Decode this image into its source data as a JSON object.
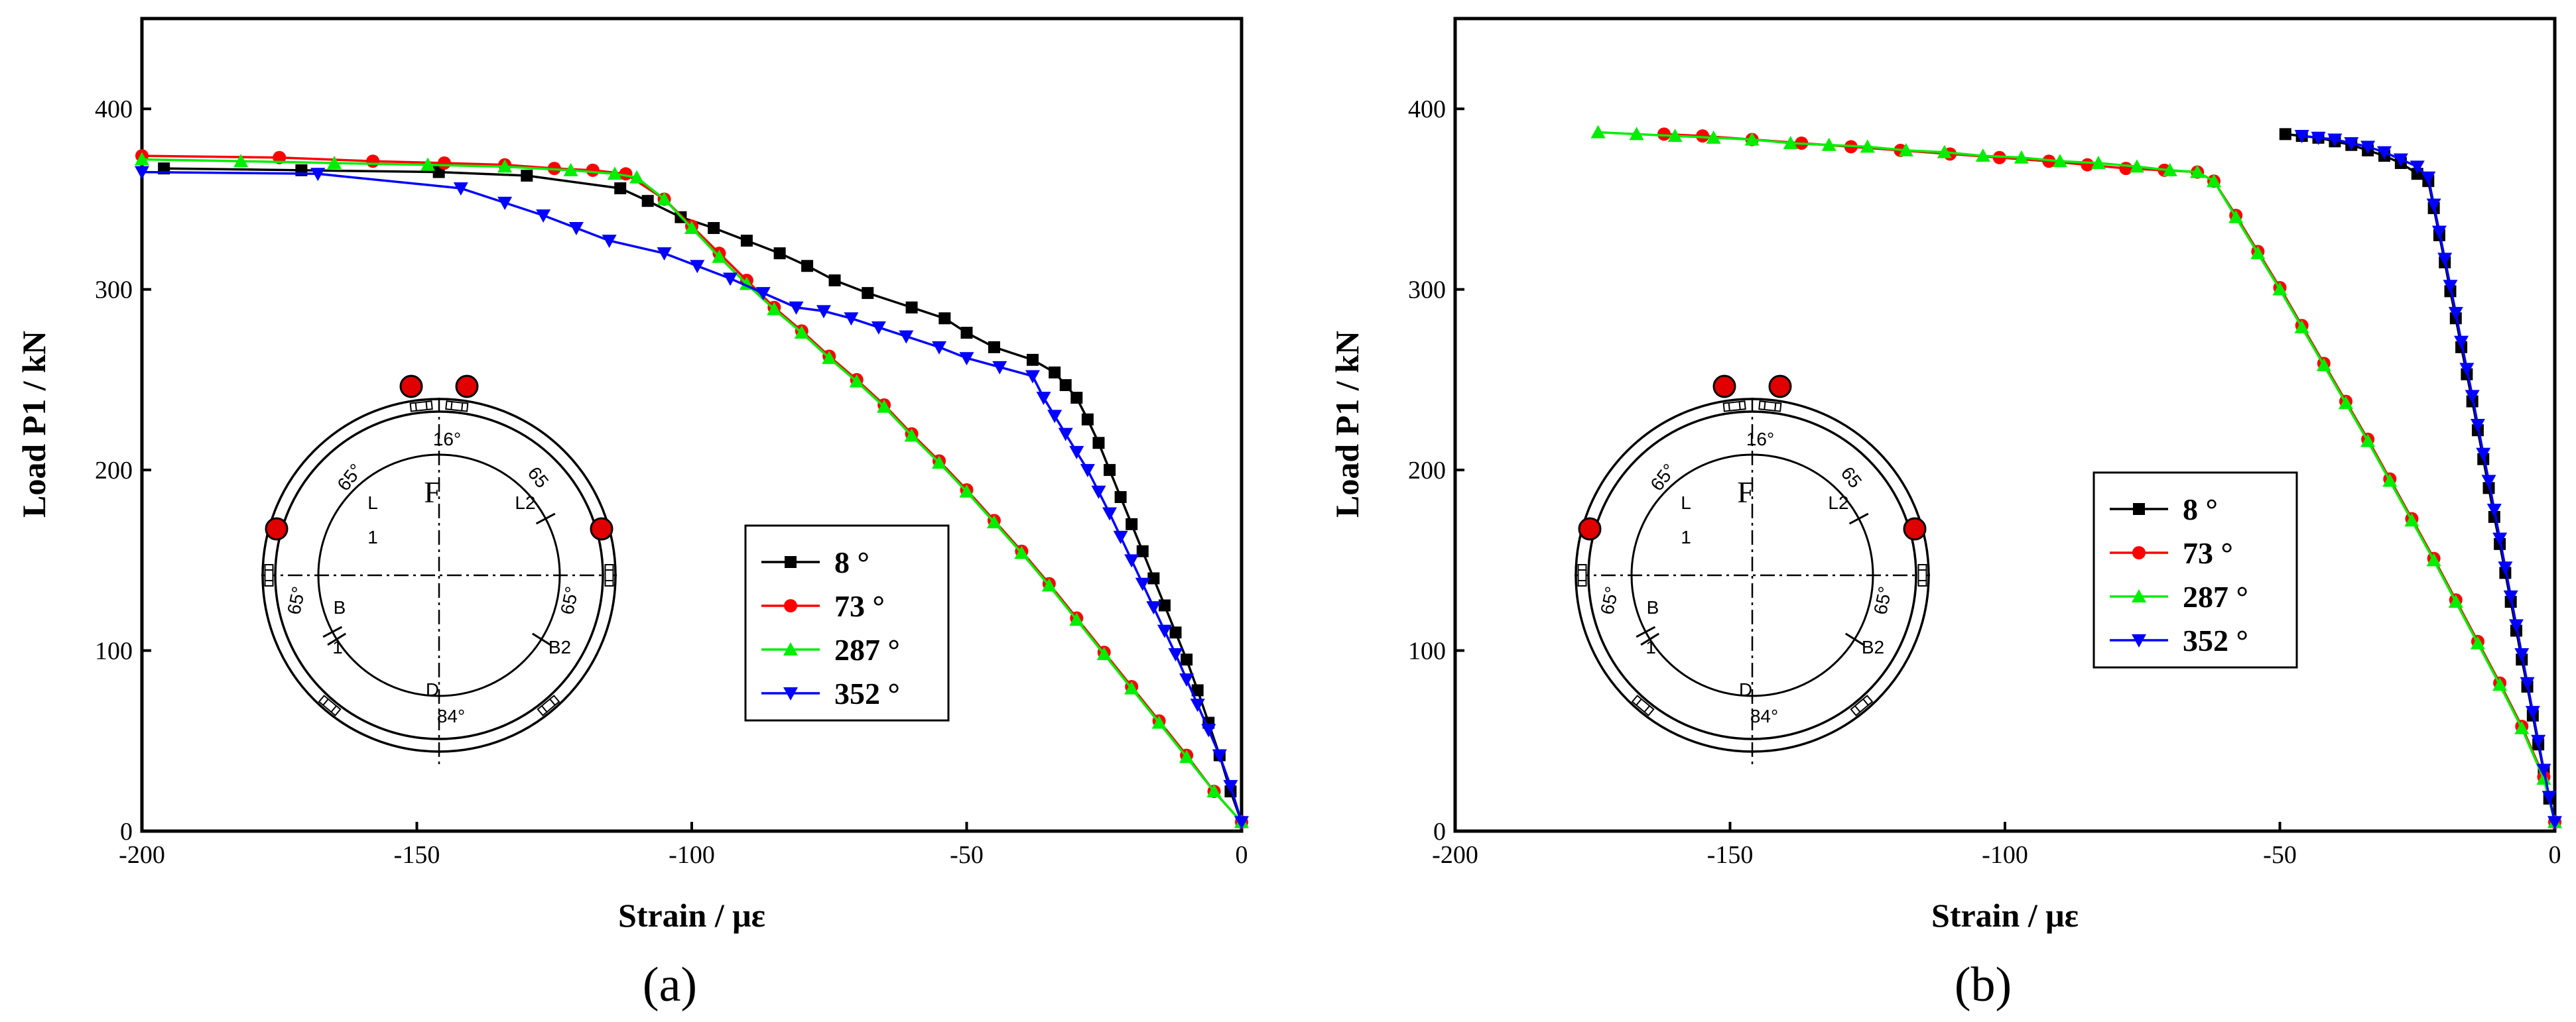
{
  "chart_data": [
    {
      "type": "line",
      "panel_label": "(a)",
      "title": "",
      "xlabel": "Strain / με",
      "ylabel": "Load P1 / kN",
      "xlim": [
        -200,
        0
      ],
      "ylim": [
        0,
        450
      ],
      "xticks": [
        -200,
        -150,
        -100,
        -50,
        0
      ],
      "yticks": [
        0,
        100,
        200,
        300,
        400
      ],
      "legend_position": "right-center",
      "series": [
        {
          "name": "8 °",
          "color": "#000000",
          "marker": "square",
          "x": [
            -196,
            -171,
            -146,
            -130,
            -113,
            -108,
            -102,
            -96,
            -90,
            -84,
            -79,
            -74,
            -68,
            -60,
            -54,
            -50,
            -45,
            -38,
            -34,
            -32,
            -30,
            -28,
            -26,
            -24,
            -22,
            -20,
            -18,
            -16,
            -14,
            -12,
            -10,
            -8,
            -6,
            -4,
            -2,
            0
          ],
          "y": [
            367,
            366,
            365,
            363,
            356,
            349,
            340,
            334,
            327,
            320,
            313,
            305,
            298,
            290,
            284,
            276,
            268,
            261,
            254,
            247,
            240,
            228,
            215,
            200,
            185,
            170,
            155,
            140,
            125,
            110,
            95,
            78,
            60,
            42,
            22,
            5
          ]
        },
        {
          "name": "73 °",
          "color": "#ff0000",
          "marker": "circle",
          "x": [
            -200,
            -175,
            -158,
            -145,
            -134,
            -125,
            -118,
            -112,
            -105,
            -100,
            -95,
            -90,
            -85,
            -80,
            -75,
            -70,
            -65,
            -60,
            -55,
            -50,
            -45,
            -40,
            -35,
            -30,
            -25,
            -20,
            -15,
            -10,
            -5,
            0
          ],
          "y": [
            374,
            373,
            371,
            370,
            369,
            367,
            366,
            364,
            350,
            335,
            320,
            305,
            290,
            277,
            263,
            250,
            236,
            220,
            205,
            189,
            172,
            155,
            137,
            118,
            99,
            80,
            61,
            42,
            22,
            5
          ]
        },
        {
          "name": "287 °",
          "color": "#00ee00",
          "marker": "triangle-up",
          "x": [
            -200,
            -182,
            -165,
            -148,
            -134,
            -122,
            -114,
            -110,
            -105,
            -100,
            -95,
            -90,
            -85,
            -80,
            -75,
            -70,
            -65,
            -60,
            -55,
            -50,
            -45,
            -40,
            -35,
            -30,
            -25,
            -20,
            -15,
            -10,
            -5,
            0
          ],
          "y": [
            372,
            371,
            370,
            369,
            368,
            366,
            364,
            362,
            350,
            334,
            318,
            303,
            289,
            276,
            262,
            249,
            235,
            219,
            204,
            188,
            171,
            154,
            136,
            117,
            98,
            79,
            60,
            41,
            22,
            5
          ]
        },
        {
          "name": "352 °",
          "color": "#0000ff",
          "marker": "triangle-down",
          "x": [
            -200,
            -168,
            -142,
            -134,
            -127,
            -121,
            -115,
            -105,
            -99,
            -93,
            -87,
            -81,
            -76,
            -71,
            -66,
            -61,
            -55,
            -50,
            -44,
            -38,
            -36,
            -34,
            -32,
            -30,
            -28,
            -26,
            -24,
            -22,
            -20,
            -18,
            -16,
            -14,
            -12,
            -10,
            -8,
            -6,
            -4,
            -2,
            0
          ],
          "y": [
            365,
            364,
            356,
            348,
            341,
            334,
            327,
            320,
            313,
            306,
            298,
            290,
            288,
            284,
            279,
            274,
            268,
            262,
            257,
            252,
            240,
            230,
            220,
            210,
            200,
            188,
            176,
            163,
            150,
            137,
            124,
            111,
            98,
            84,
            70,
            56,
            42,
            25,
            5
          ]
        }
      ]
    },
    {
      "type": "line",
      "panel_label": "(b)",
      "title": "",
      "xlabel": "Strain / με",
      "ylabel": "Load P1 / kN",
      "xlim": [
        -200,
        0
      ],
      "ylim": [
        0,
        450
      ],
      "xticks": [
        -200,
        -150,
        -100,
        -50,
        0
      ],
      "yticks": [
        0,
        100,
        200,
        300,
        400
      ],
      "legend_position": "right-center",
      "series": [
        {
          "name": "8 °",
          "color": "#000000",
          "marker": "square",
          "x": [
            -49,
            -46,
            -43,
            -40,
            -37,
            -34,
            -31,
            -28,
            -25,
            -23,
            -22,
            -21,
            -20,
            -19,
            -18,
            -17,
            -16,
            -15,
            -14,
            -13,
            -12,
            -11,
            -10,
            -9,
            -8,
            -7,
            -6,
            -5,
            -4,
            -3,
            -2,
            -1,
            0
          ],
          "y": [
            386,
            385,
            384,
            382,
            380,
            377,
            374,
            370,
            364,
            360,
            345,
            330,
            315,
            299,
            284,
            268,
            253,
            238,
            222,
            206,
            190,
            174,
            159,
            143,
            127,
            111,
            95,
            80,
            64,
            48,
            33,
            18,
            5
          ]
        },
        {
          "name": "73 °",
          "color": "#ff0000",
          "marker": "circle",
          "x": [
            -162,
            -155,
            -146,
            -137,
            -128,
            -119,
            -110,
            -101,
            -92,
            -85,
            -78,
            -71,
            -65,
            -62,
            -58,
            -54,
            -50,
            -46,
            -42,
            -38,
            -34,
            -30,
            -26,
            -22,
            -18,
            -14,
            -10,
            -6,
            -2,
            0
          ],
          "y": [
            386,
            385,
            383,
            381,
            379,
            377,
            375,
            373,
            371,
            369,
            367,
            366,
            365,
            360,
            341,
            321,
            301,
            280,
            259,
            238,
            217,
            195,
            173,
            151,
            128,
            105,
            82,
            58,
            30,
            5
          ]
        },
        {
          "name": "287 °",
          "color": "#00ee00",
          "marker": "triangle-up",
          "x": [
            -174,
            -167,
            -160,
            -153,
            -146,
            -139,
            -132,
            -125,
            -118,
            -111,
            -104,
            -97,
            -90,
            -83,
            -76,
            -70,
            -65,
            -62,
            -58,
            -54,
            -50,
            -46,
            -42,
            -38,
            -34,
            -30,
            -26,
            -22,
            -18,
            -14,
            -10,
            -6,
            -2,
            0
          ],
          "y": [
            387,
            386,
            385,
            384,
            383,
            381,
            380,
            379,
            377,
            376,
            374,
            373,
            371,
            370,
            368,
            366,
            365,
            360,
            340,
            320,
            300,
            279,
            258,
            237,
            216,
            194,
            172,
            150,
            127,
            104,
            81,
            57,
            29,
            5
          ]
        },
        {
          "name": "352 °",
          "color": "#0000ff",
          "marker": "triangle-down",
          "x": [
            -46,
            -43,
            -40,
            -37,
            -34,
            -31,
            -28,
            -25,
            -23,
            -22,
            -21,
            -20,
            -19,
            -18,
            -17,
            -16,
            -15,
            -14,
            -13,
            -12,
            -11,
            -10,
            -9,
            -8,
            -7,
            -6,
            -5,
            -4,
            -3,
            -2,
            -1,
            0
          ],
          "y": [
            385,
            384,
            383,
            381,
            379,
            376,
            372,
            368,
            362,
            347,
            332,
            317,
            302,
            287,
            271,
            256,
            241,
            225,
            209,
            194,
            178,
            162,
            146,
            130,
            114,
            98,
            82,
            66,
            50,
            34,
            19,
            5
          ]
        }
      ]
    }
  ],
  "inset": {
    "labels": {
      "angle_top": "16°",
      "angle_upper_left": "65°",
      "angle_upper_right": "65",
      "angle_lower_left": "65°",
      "angle_lower_right": "65°",
      "angle_bottom": "84°",
      "letter_F": "F",
      "letter_L": "L",
      "label_L2": "L2",
      "label_1": "1",
      "letter_B": "B",
      "label_B1": "1",
      "label_B2": "B2",
      "letter_D": "D"
    },
    "load_point_color": "#e00000"
  }
}
